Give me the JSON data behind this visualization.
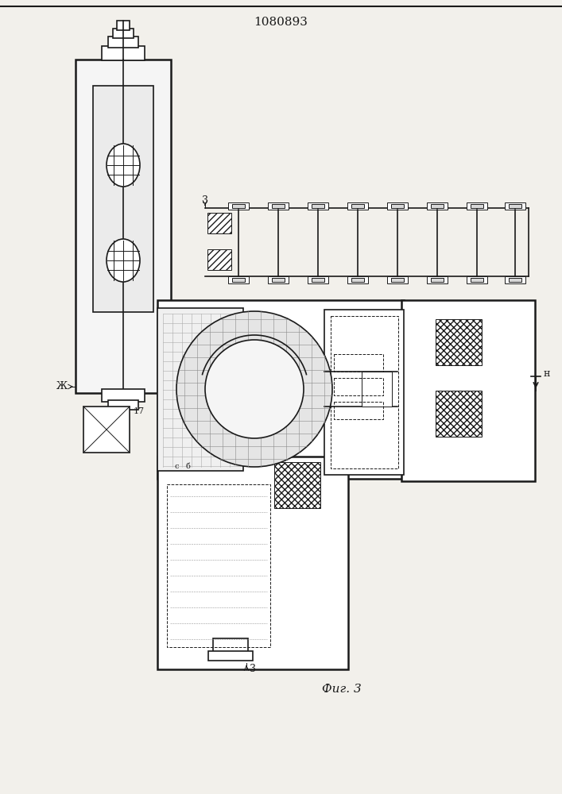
{
  "title": "1080893",
  "caption": "Фиг. 3",
  "bg_color": "#f2f0eb",
  "line_color": "#1a1a1a",
  "label_3_top": "3",
  "label_3_bottom": "3",
  "label_zh": "Ж",
  "label_n": "н",
  "label_17": "17",
  "label_c": "с",
  "label_b": "б"
}
